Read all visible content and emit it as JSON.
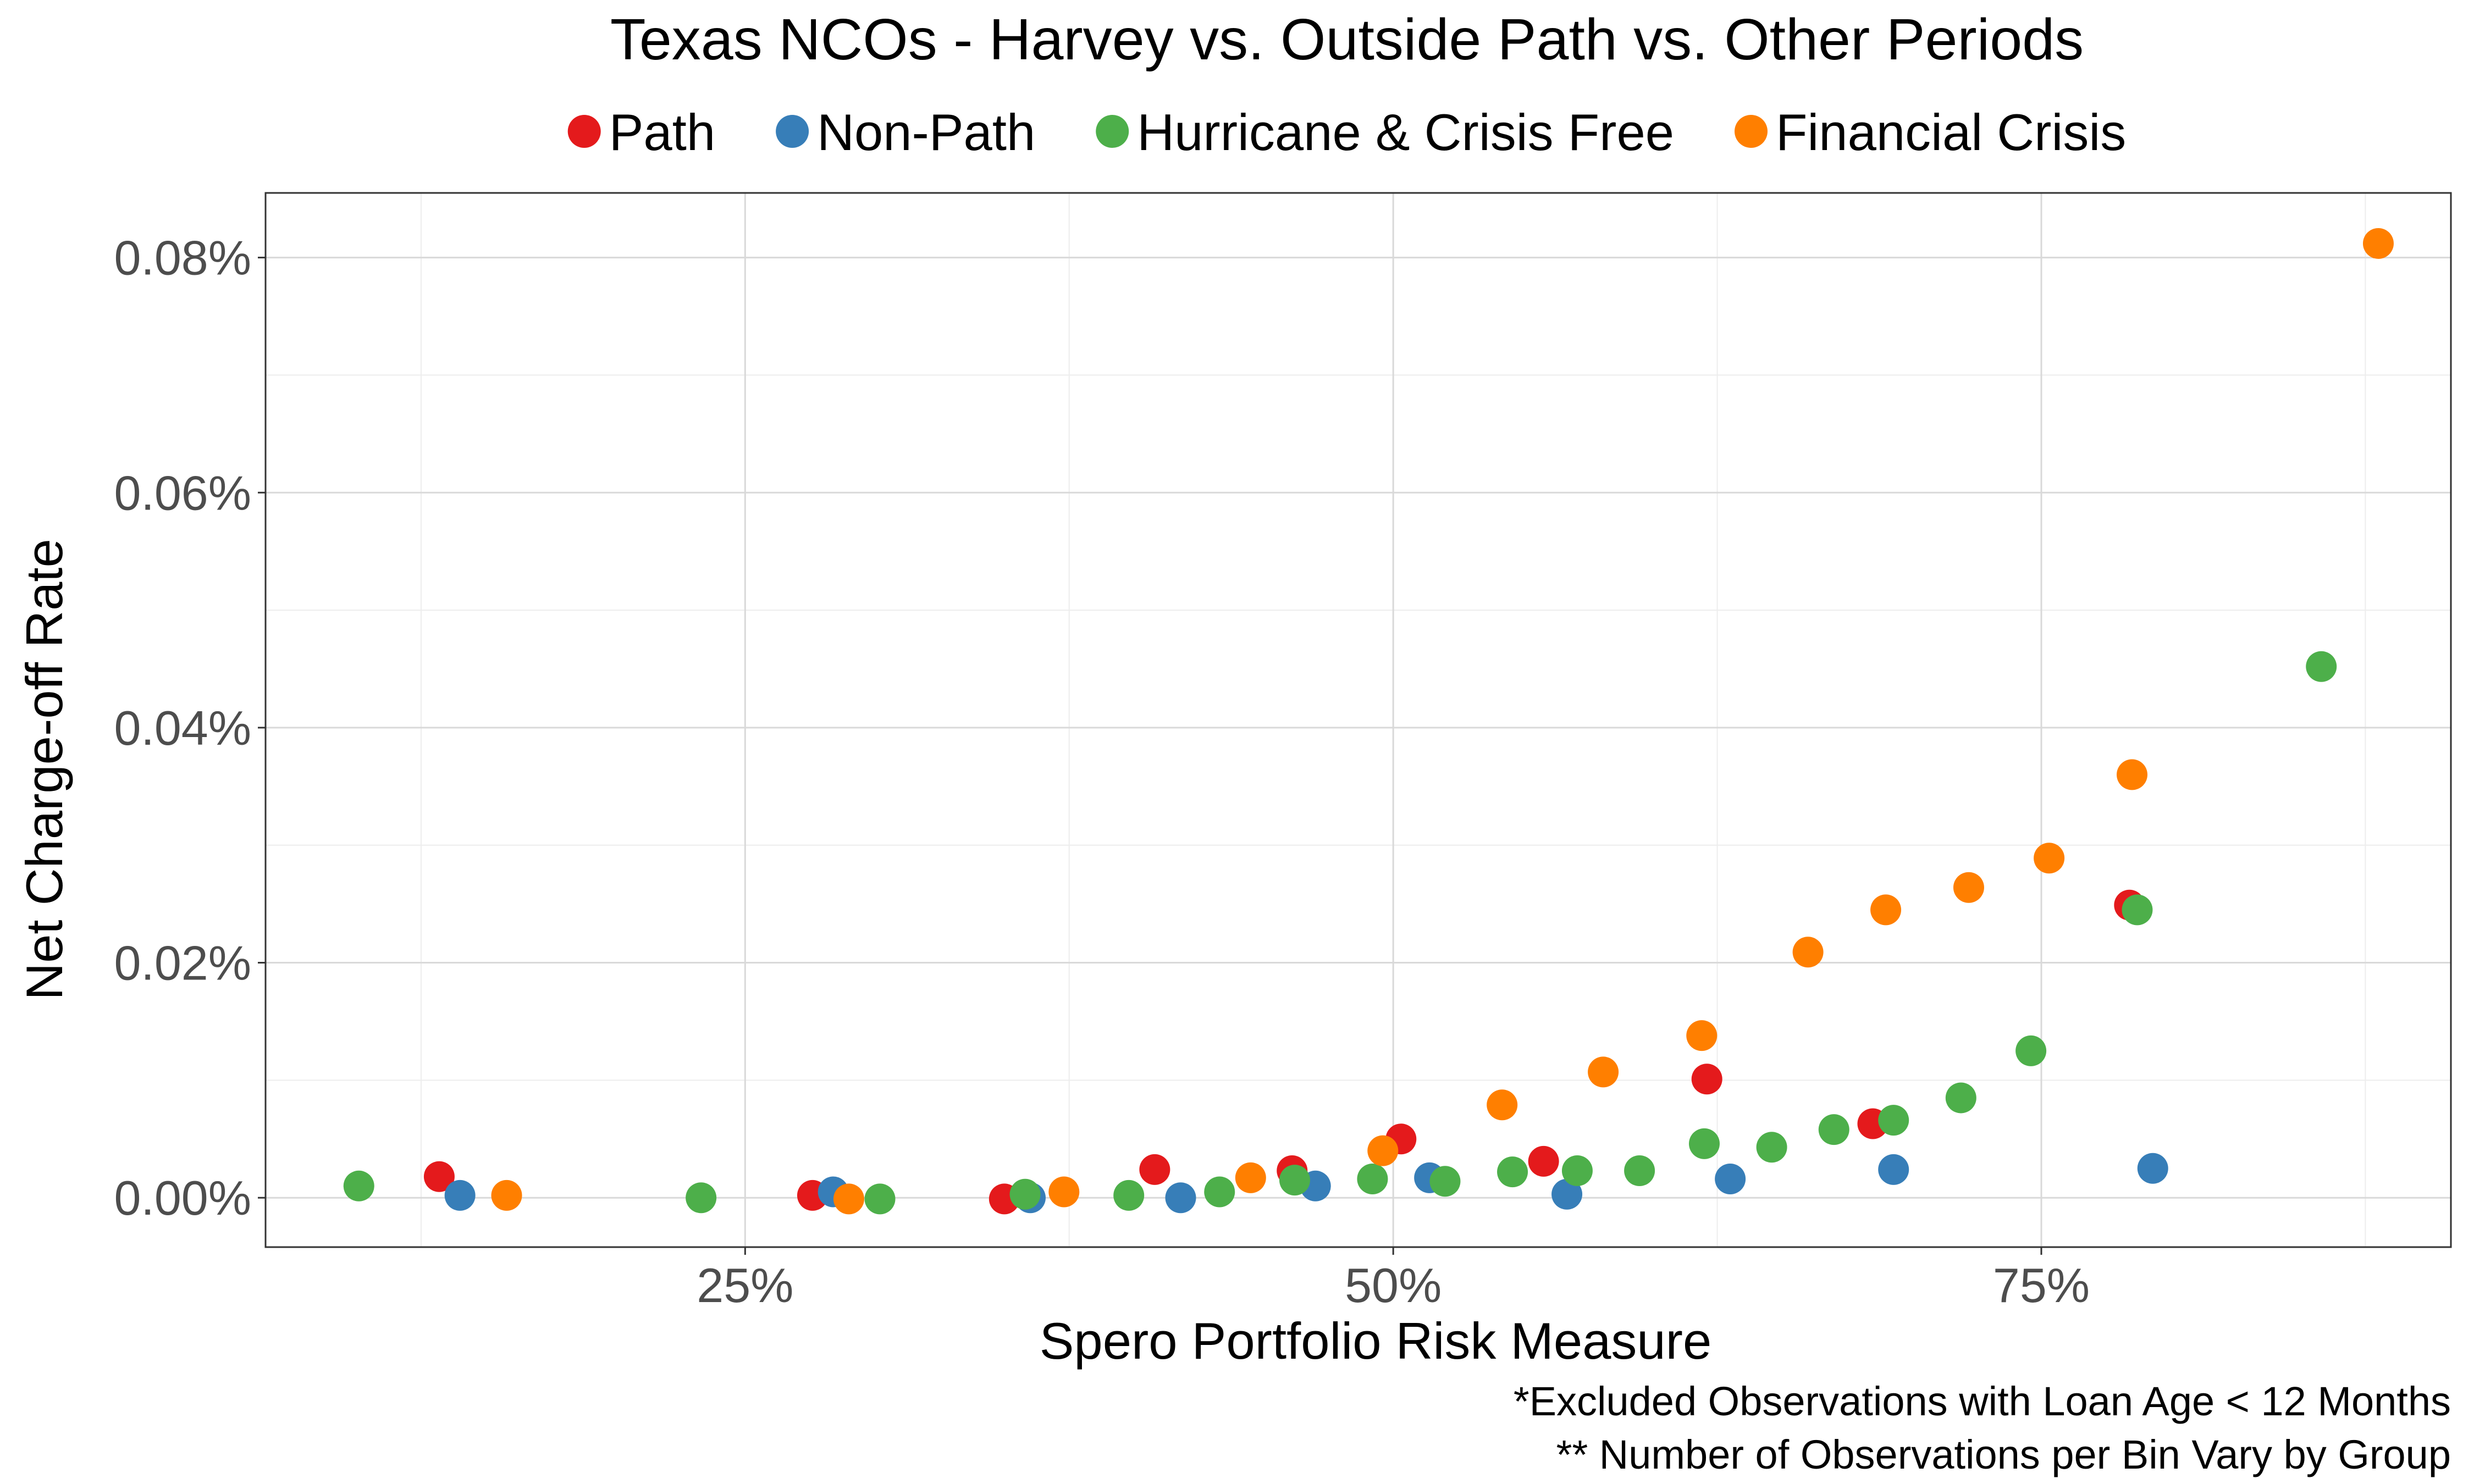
{
  "chart_data": {
    "type": "scatter",
    "title": "Texas NCOs - Harvey vs. Outside Path vs. Other Periods",
    "xlabel": "Spero Portfolio Risk Measure",
    "ylabel": "Net Charge-off Rate",
    "caption": [
      "*Excluded Observations with Loan Age < 12 Months",
      "** Number of Observations per Bin Vary by Group"
    ],
    "x_unit": "fraction",
    "y_unit": "percent",
    "xlim": [
      0.065,
      0.908
    ],
    "ylim": [
      -0.0042,
      0.0855
    ],
    "x_ticks": [
      0.25,
      0.5,
      0.75
    ],
    "x_tick_labels": [
      "25%",
      "50%",
      "75%"
    ],
    "y_ticks": [
      0.0,
      0.02,
      0.04,
      0.06,
      0.08
    ],
    "y_tick_labels": [
      "0.00%",
      "0.02%",
      "0.04%",
      "0.06%",
      "0.08%"
    ],
    "grid": true,
    "legend_position": "top",
    "series": [
      {
        "name": "Path",
        "color": "#e41a1c",
        "points": [
          [
            0.132,
            0.0018
          ],
          [
            0.276,
            0.0002
          ],
          [
            0.35,
            -0.0001
          ],
          [
            0.408,
            0.0024
          ],
          [
            0.461,
            0.0023
          ],
          [
            0.503,
            0.005
          ],
          [
            0.558,
            0.0031
          ],
          [
            0.621,
            0.0101
          ],
          [
            0.685,
            0.0063
          ],
          [
            0.784,
            0.0249
          ]
        ]
      },
      {
        "name": "Non-Path",
        "color": "#377eb8",
        "points": [
          [
            0.14,
            0.0002
          ],
          [
            0.284,
            0.0005
          ],
          [
            0.36,
            0.0
          ],
          [
            0.418,
            0.0
          ],
          [
            0.47,
            0.001
          ],
          [
            0.514,
            0.0017
          ],
          [
            0.567,
            0.0003
          ],
          [
            0.63,
            0.0016
          ],
          [
            0.693,
            0.0024
          ],
          [
            0.793,
            0.0025
          ]
        ]
      },
      {
        "name": "Hurricane & Crisis Free",
        "color": "#4daf4a",
        "points": [
          [
            0.101,
            0.001
          ],
          [
            0.233,
            0.0
          ],
          [
            0.302,
            -0.0001
          ],
          [
            0.358,
            0.0003
          ],
          [
            0.398,
            0.0002
          ],
          [
            0.433,
            0.0005
          ],
          [
            0.462,
            0.0015
          ],
          [
            0.492,
            0.0016
          ],
          [
            0.52,
            0.0014
          ],
          [
            0.546,
            0.0022
          ],
          [
            0.571,
            0.0023
          ],
          [
            0.595,
            0.0023
          ],
          [
            0.62,
            0.0046
          ],
          [
            0.646,
            0.0043
          ],
          [
            0.67,
            0.0058
          ],
          [
            0.693,
            0.0066
          ],
          [
            0.719,
            0.0085
          ],
          [
            0.746,
            0.0125
          ],
          [
            0.787,
            0.0245
          ],
          [
            0.858,
            0.0452
          ]
        ]
      },
      {
        "name": "Financial Crisis",
        "color": "#ff7f00",
        "points": [
          [
            0.158,
            0.0002
          ],
          [
            0.29,
            -0.0001
          ],
          [
            0.373,
            0.0005
          ],
          [
            0.445,
            0.0017
          ],
          [
            0.496,
            0.004
          ],
          [
            0.542,
            0.0079
          ],
          [
            0.581,
            0.0107
          ],
          [
            0.619,
            0.0138
          ],
          [
            0.66,
            0.0209
          ],
          [
            0.69,
            0.0245
          ],
          [
            0.722,
            0.0264
          ],
          [
            0.753,
            0.0289
          ],
          [
            0.785,
            0.036
          ],
          [
            0.88,
            0.0812
          ]
        ]
      }
    ]
  }
}
